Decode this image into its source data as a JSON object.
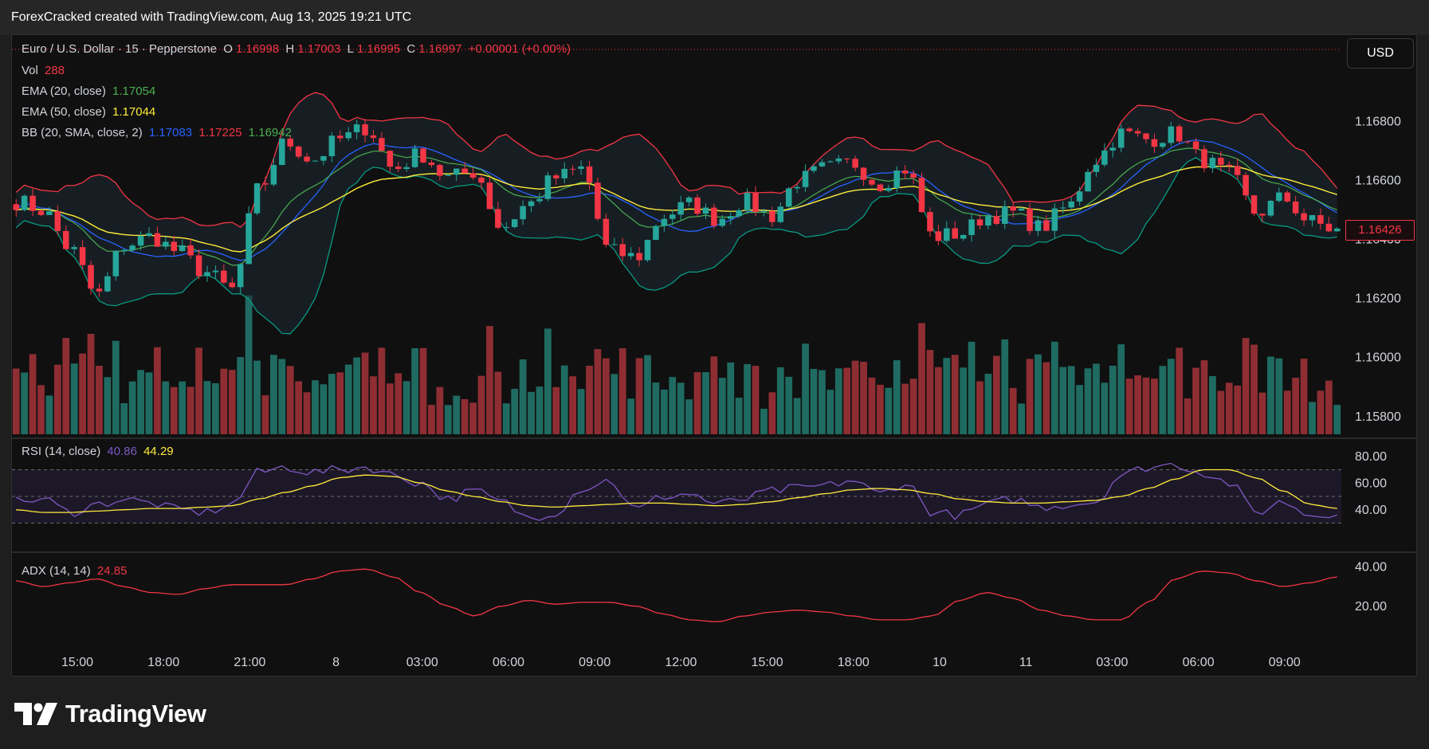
{
  "header": {
    "title": "ForexCracked created with TradingView.com, Aug 13, 2025 19:21 UTC"
  },
  "symbol": {
    "name": "Euro / U.S. Dollar · 15 · Pepperstone",
    "o_label": "O",
    "o_value": "1.16998",
    "h_label": "H",
    "h_value": "1.17003",
    "l_label": "L",
    "l_value": "1.16995",
    "c_label": "C",
    "c_value": "1.16997",
    "change": "+0.00001 (+0.00%)"
  },
  "indicators": {
    "vol_label": "Vol",
    "vol_value": "288",
    "ema20_label": "EMA (20, close)",
    "ema20_value": "1.17054",
    "ema50_label": "EMA (50, close)",
    "ema50_value": "1.17044",
    "bb_label": "BB (20, SMA, close, 2)",
    "bb_basis": "1.17083",
    "bb_upper": "1.17225",
    "bb_lower": "1.16942",
    "rsi_label": "RSI (14, close)",
    "rsi_value": "40.86",
    "rsi_ma_value": "44.29",
    "adx_label": "ADX (14, 14)",
    "adx_value": "24.85"
  },
  "currency_button": "USD",
  "last_price": "1.16426",
  "brand": {
    "name": "TradingView"
  },
  "colors": {
    "up": "#26a69a",
    "down": "#f23645",
    "ema20": "#4caf50",
    "ema50": "#ffeb3b",
    "bb_basis": "#2962ff",
    "bb_upper": "#f23645",
    "bb_lower": "#089981",
    "rsi": "#7e57c2",
    "adx": "#f23645"
  },
  "chart_data": {
    "type": "candlestick",
    "price_axis_ticks": [
      "1.16800",
      "1.16600",
      "1.16400",
      "1.16200",
      "1.16000",
      "1.15800"
    ],
    "price_range": [
      1.1574,
      1.1705
    ],
    "rsi_axis_ticks": [
      "80.00",
      "60.00",
      "40.00"
    ],
    "rsi_levels": [
      70,
      50,
      30
    ],
    "adx_axis_ticks": [
      "40.00",
      "20.00"
    ],
    "x_labels": [
      "15:00",
      "18:00",
      "21:00",
      "8",
      "03:00",
      "06:00",
      "09:00",
      "12:00",
      "15:00",
      "18:00",
      "10",
      "11",
      "03:00",
      "06:00",
      "09:00"
    ],
    "close_anchors": [
      1.1653,
      1.165,
      1.1637,
      1.1621,
      1.1638,
      1.1641,
      1.1636,
      1.1629,
      1.1623,
      1.1657,
      1.1673,
      1.1667,
      1.1674,
      1.1678,
      1.1664,
      1.1669,
      1.1661,
      1.1663,
      1.1644,
      1.1652,
      1.1661,
      1.1664,
      1.1636,
      1.1634,
      1.1648,
      1.1652,
      1.1647,
      1.1653,
      1.1648,
      1.166,
      1.1664,
      1.1666,
      1.1659,
      1.1664,
      1.1641,
      1.1642,
      1.1648,
      1.1649,
      1.1644,
      1.1651,
      1.1667,
      1.1676,
      1.1674,
      1.1676,
      1.1667,
      1.1662,
      1.1649,
      1.1654,
      1.1646,
      1.1643
    ],
    "rsi_anchors": [
      46,
      48,
      38,
      44,
      48,
      45,
      40,
      38,
      44,
      68,
      72,
      68,
      70,
      72,
      66,
      60,
      48,
      54,
      46,
      34,
      38,
      56,
      62,
      40,
      50,
      52,
      44,
      48,
      54,
      56,
      58,
      62,
      52,
      60,
      38,
      36,
      44,
      48,
      42,
      44,
      46,
      66,
      72,
      74,
      68,
      60,
      38,
      46,
      36,
      38
    ],
    "rsi_ma_anchors": [
      40,
      38,
      38,
      39,
      40,
      41,
      41,
      42,
      43,
      48,
      53,
      58,
      64,
      66,
      65,
      60,
      54,
      50,
      46,
      43,
      42,
      43,
      44,
      45,
      45,
      44,
      43,
      44,
      46,
      49,
      52,
      55,
      56,
      55,
      52,
      48,
      46,
      45,
      45,
      46,
      47,
      50,
      56,
      63,
      70,
      70,
      64,
      54,
      44,
      41
    ],
    "adx_anchors": [
      33,
      30,
      32,
      34,
      30,
      27,
      26,
      29,
      31,
      31,
      31,
      34,
      38,
      39,
      35,
      27,
      20,
      15,
      20,
      23,
      21,
      22,
      22,
      20,
      16,
      13,
      12,
      15,
      17,
      18,
      17,
      15,
      13,
      13,
      15,
      23,
      27,
      24,
      18,
      15,
      13,
      13,
      22,
      34,
      38,
      37,
      33,
      30,
      32,
      35
    ]
  }
}
